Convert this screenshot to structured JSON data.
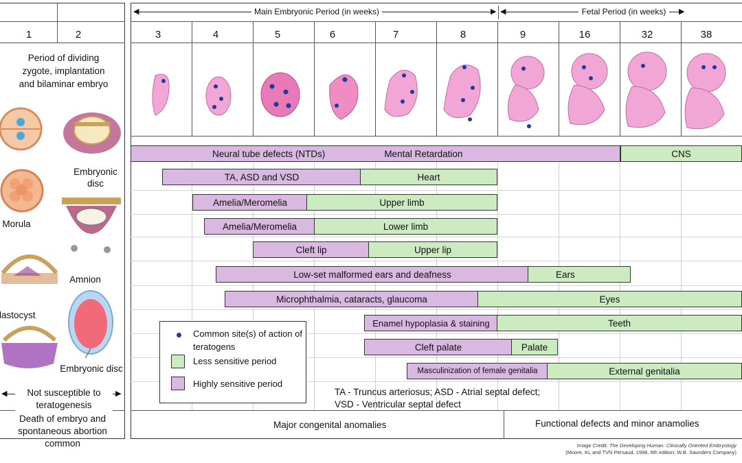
{
  "header": {
    "main_period": "Main Embryonic Period (in weeks)",
    "fetal_period": "Fetal Period (in weeks)"
  },
  "weeks": [
    "1",
    "2",
    "3",
    "4",
    "5",
    "6",
    "7",
    "8",
    "9",
    "16",
    "32",
    "38"
  ],
  "left_panel": {
    "period_text": "Period of dividing zygote, implantation and bilaminar embryo",
    "embryonic_disc_1": "Embryonic disc",
    "morula": "Morula",
    "amnion": "Amnion",
    "blastocyst": "Blastocyst",
    "embryonic_disc_2": "Embryonic disc",
    "not_susceptible": "Not susceptible to teratogenesis",
    "death": "Death of embryo and spontaneous abortion common"
  },
  "bars": {
    "ntd": "Neural tube defects (NTDs)",
    "mr": "Mental Retardation",
    "cns": "CNS",
    "heart_hs": "TA, ASD and VSD",
    "heart_ls": "Heart",
    "upper_hs": "Amelia/Meromelia",
    "upper_ls": "Upper limb",
    "lower_hs": "Amelia/Meromelia",
    "lower_ls": "Lower limb",
    "lip_hs": "Cleft lip",
    "lip_ls": "Upper lip",
    "ears_hs": "Low-set malformed ears and deafness",
    "ears_ls": "Ears",
    "eyes_hs": "Microphthalmia, cataracts, glaucoma",
    "eyes_ls": "Eyes",
    "teeth_hs": "Enamel hypoplasia & staining",
    "teeth_ls": "Teeth",
    "palate_hs": "Cleft palate",
    "palate_ls": "Palate",
    "genital_hs": "Masculinization of female genitalia",
    "genital_ls": "External genitalia"
  },
  "legend": {
    "site": "Common site(s) of action of teratogens",
    "less": "Less sensitive period",
    "high": "Highly sensitive period"
  },
  "abbrev": {
    "line1": "TA - Truncus arteriosus; ASD - Atrial septal defect;",
    "line2": "VSD - Ventricular septal defect"
  },
  "footer": {
    "major": "Major congenital anomalies",
    "functional": "Functional defects and minor anamolies"
  },
  "credit": {
    "prefix": "Image Credit: ",
    "title": "The Developing Human: Clinically Oriented Embryology",
    "line2": "(Moore, KL and TVN Persaud, 1998, 6th edition; W.B. Saunders Company)"
  },
  "colors": {
    "highly_sensitive": "#d9b8e2",
    "less_sensitive": "#cdebc0",
    "site_dot": "#1f3a9a",
    "embryo_pink": "#f2a6d6"
  }
}
